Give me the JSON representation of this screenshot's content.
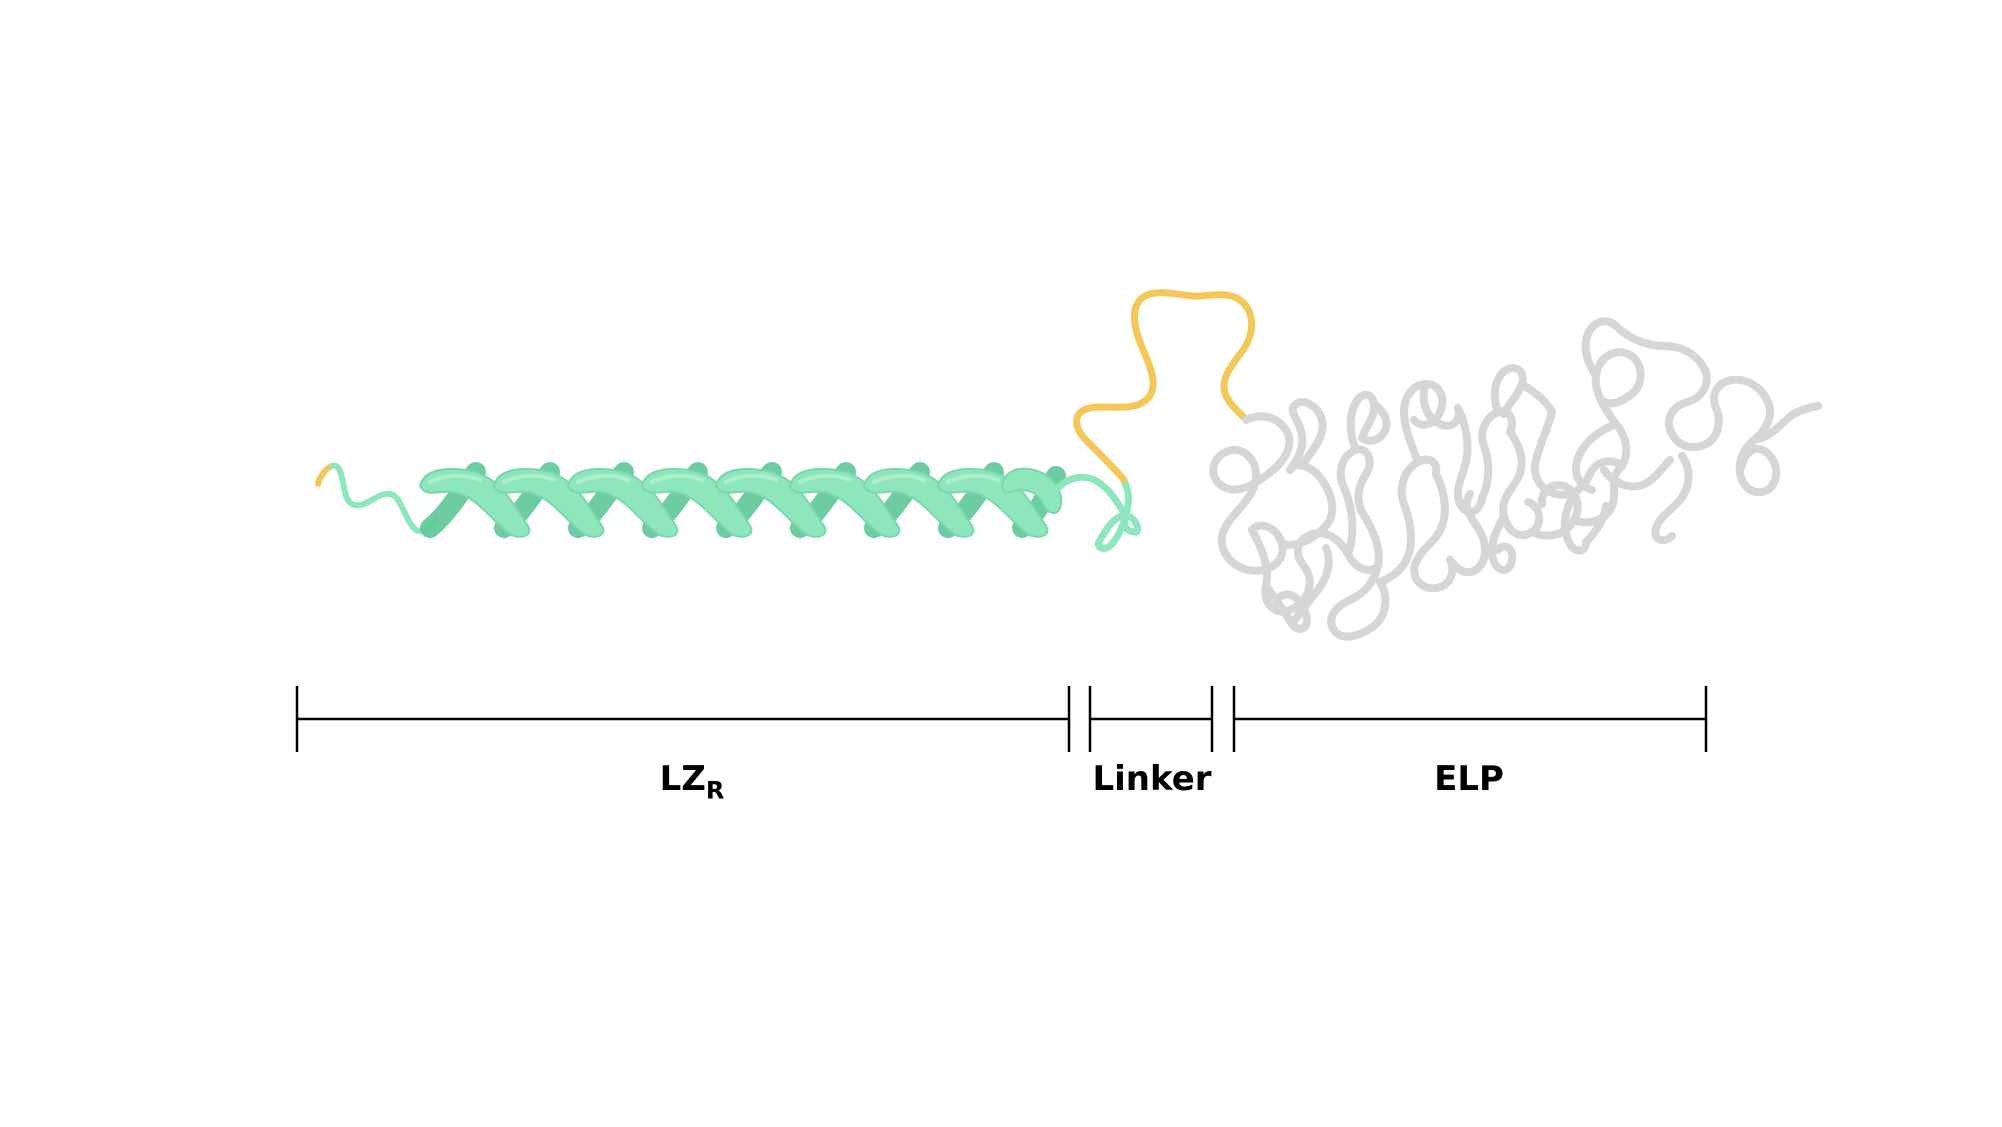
{
  "segments": [
    {
      "id": "lzr",
      "label": "LZ",
      "subscript": "R",
      "color": "#8ee6bd"
    },
    {
      "id": "linker",
      "label": "Linker",
      "color": "#f2c85a"
    },
    {
      "id": "elp",
      "label": "ELP",
      "color": "#d6d6d6"
    }
  ],
  "colors": {
    "helix": "#8ee6bd",
    "helix_shadow": "#5fc79a",
    "linker": "#f2c85a",
    "elp": "#d6d6d6",
    "bracket": "#000000"
  }
}
